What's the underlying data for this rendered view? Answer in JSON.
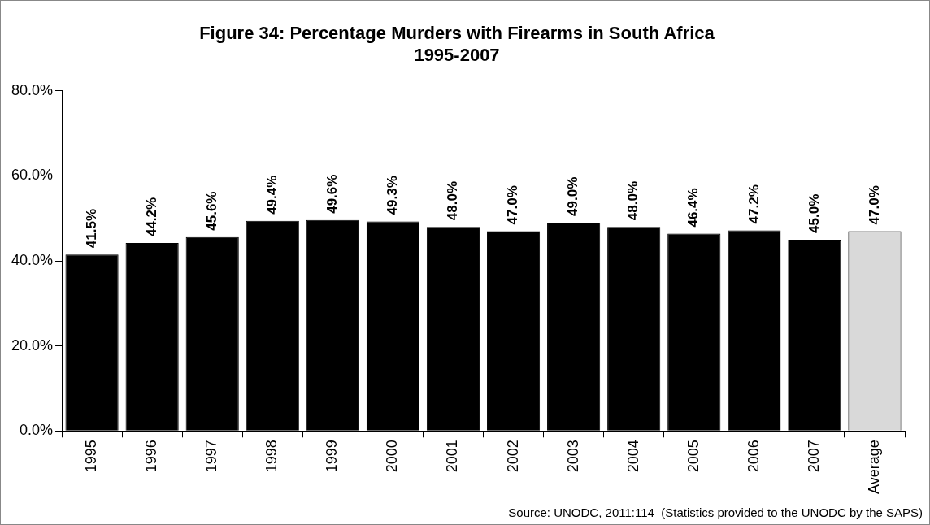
{
  "chart_data": {
    "type": "bar",
    "title": "Figure 34: Percentage Murders with Firearms in South Africa\n1995-2007",
    "categories": [
      "1995",
      "1996",
      "1997",
      "1998",
      "1999",
      "2000",
      "2001",
      "2002",
      "2003",
      "2004",
      "2005",
      "2006",
      "2007",
      "Average"
    ],
    "values": [
      41.5,
      44.2,
      45.6,
      49.4,
      49.6,
      49.3,
      48.0,
      47.0,
      49.0,
      48.0,
      46.4,
      47.2,
      45.0,
      47.0
    ],
    "value_labels": [
      "41.5%",
      "44.2%",
      "45.6%",
      "49.4%",
      "49.6%",
      "49.3%",
      "48.0%",
      "47.0%",
      "49.0%",
      "48.0%",
      "46.4%",
      "47.2%",
      "45.0%",
      "47.0%"
    ],
    "colors": [
      "#000000",
      "#000000",
      "#000000",
      "#000000",
      "#000000",
      "#000000",
      "#000000",
      "#000000",
      "#000000",
      "#000000",
      "#000000",
      "#000000",
      "#000000",
      "#d9d9d9"
    ],
    "ylim": [
      0,
      80
    ],
    "yticks": [
      {
        "value": 0,
        "label": "0.0%"
      },
      {
        "value": 20,
        "label": "20.0%"
      },
      {
        "value": 40,
        "label": "40.0%"
      },
      {
        "value": 60,
        "label": "60.0%"
      },
      {
        "value": 80,
        "label": "80.0%"
      }
    ],
    "grid": false,
    "legend": false,
    "annotations": [
      "Source: UNODC, 2011:114  (Statistics provided to the UNODC by the SAPS)"
    ]
  }
}
